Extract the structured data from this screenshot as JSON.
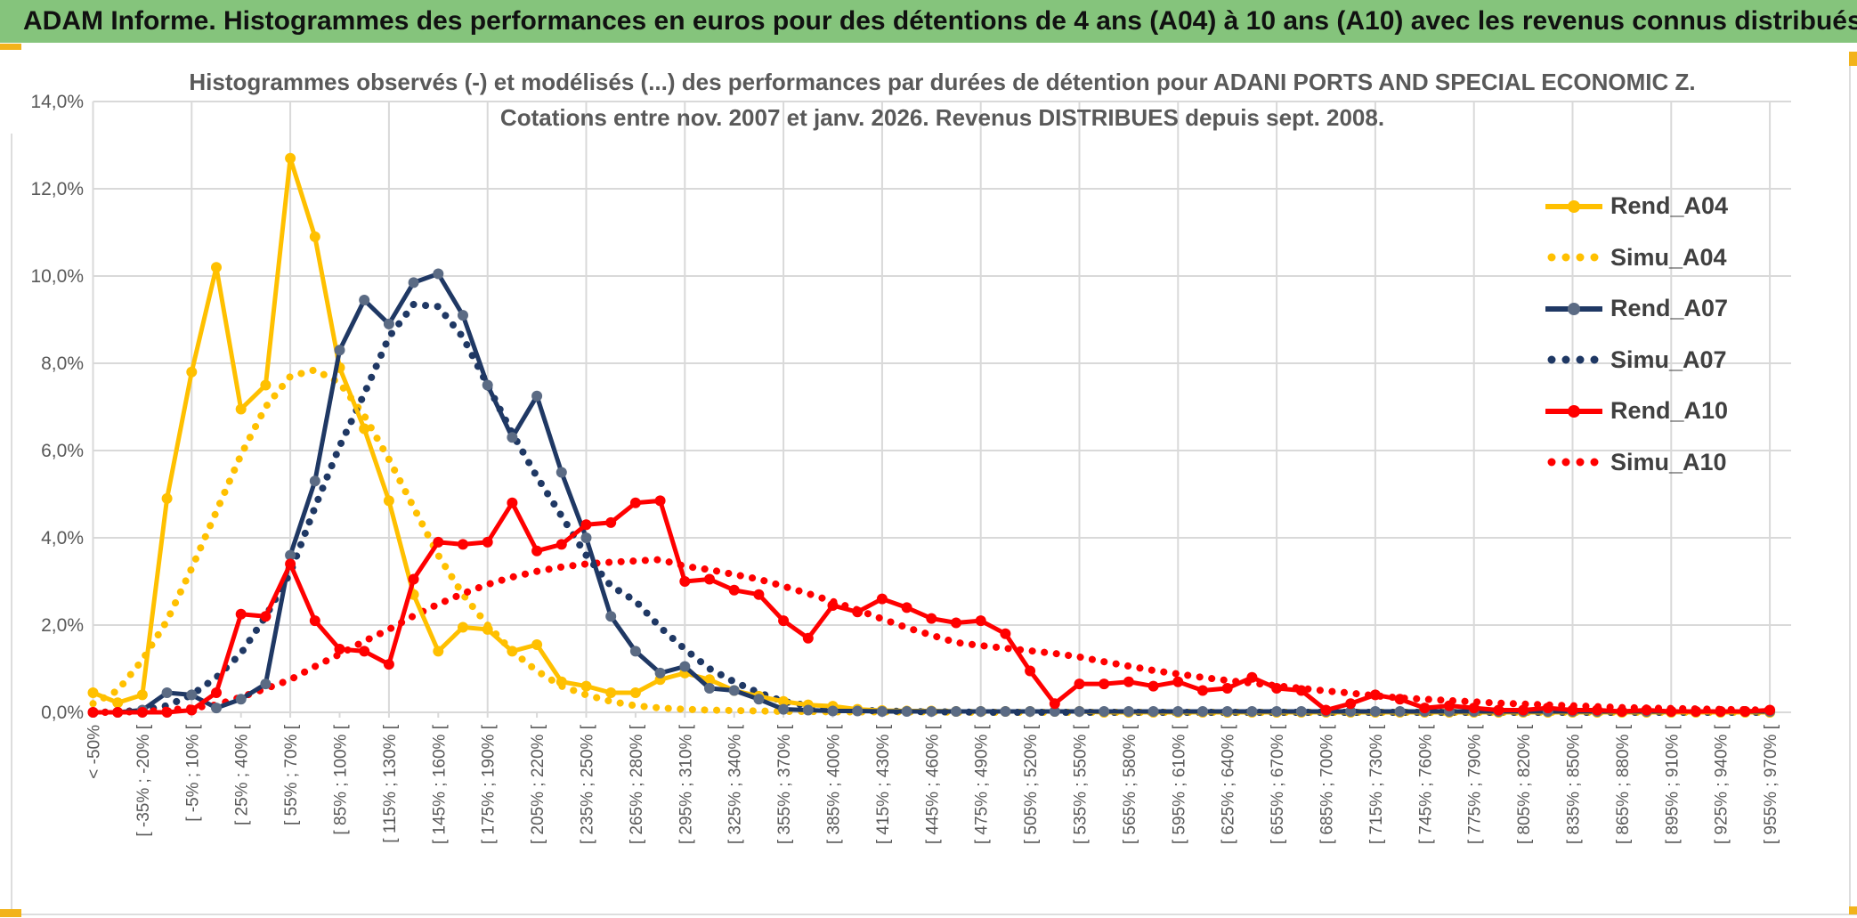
{
  "window": {
    "title": "ADAM Informe. Histogrammes des performances en euros pour des détentions de 4 ans (A04) à 10 ans (A10) avec les revenus connus distribués"
  },
  "chart": {
    "title_line1": "Histogrammes observés (-) et modélisés (...) des performances par durées de détention pour ADANI PORTS AND SPECIAL ECONOMIC Z.",
    "title_line2": "Cotations entre nov. 2007 et janv. 2026. Revenus DISTRIBUES depuis sept. 2008."
  },
  "colors": {
    "titlebar_green": "#85C47C",
    "gold_accent": "#F2B31B",
    "series_gold": "#FFC000",
    "series_navy": "#1F3864",
    "navy_marker": "#5B6B84",
    "series_red": "#FF0000",
    "grid": "#D9D9D9",
    "axis_text": "#595959",
    "legend_text": "#404040"
  },
  "chart_data": {
    "type": "line",
    "title": "Histogrammes observés (-) et modélisés (...) des performances par durées de détention pour ADANI PORTS AND SPECIAL ECONOMIC Z. Cotations entre nov. 2007 et janv. 2026. Revenus DISTRIBUES depuis sept. 2008.",
    "xlabel": "",
    "ylabel": "",
    "ylim": [
      0,
      14
    ],
    "ytick_step": 2,
    "ytick_labels": [
      "0,0%",
      "2,0%",
      "4,0%",
      "6,0%",
      "8,0%",
      "10,0%",
      "12,0%",
      "14,0%"
    ],
    "grid": true,
    "legend_position": "right",
    "categories": [
      "< -50%",
      "",
      "[ -35% ; -20% [",
      "",
      "[ -5% ; 10% [",
      "",
      "[ 25% ; 40% [",
      "",
      "[ 55% ; 70% [",
      "",
      "[ 85% ; 100% [",
      "",
      "[ 115% ; 130% [",
      "",
      "[ 145% ; 160% [",
      "",
      "[ 175% ; 190% [",
      "",
      "[ 205% ; 220% [",
      "",
      "[ 235% ; 250% [",
      "",
      "[ 265% ; 280% [",
      "",
      "[ 295% ; 310% [",
      "",
      "[ 325% ; 340% [",
      "",
      "[ 355% ; 370% [",
      "",
      "[ 385% ; 400% [",
      "",
      "[ 415% ; 430% [",
      "",
      "[ 445% ; 460% [",
      "",
      "[ 475% ; 490% [",
      "",
      "[ 505% ; 520% [",
      "",
      "[ 535% ; 550% [",
      "",
      "[ 565% ; 580% [",
      "",
      "[ 595% ; 610% [",
      "",
      "[ 625% ; 640% [",
      "",
      "[ 655% ; 670% [",
      "",
      "[ 685% ; 700% [",
      "",
      "[ 715% ; 730% [",
      "",
      "[ 745% ; 760% [",
      "",
      "[ 775% ; 790% [",
      "",
      "[ 805% ; 820% [",
      "",
      "[ 835% ; 850% [",
      "",
      "[ 865% ; 880% [",
      "",
      "[ 895% ; 910% [",
      "",
      "[ 925% ; 940% [",
      "",
      "[ 955% ; 970% ["
    ],
    "series": [
      {
        "name": "Rend_A04",
        "color": "#FFC000",
        "style": "solid",
        "marker": "#FFC000",
        "values": [
          0.45,
          0.22,
          0.4,
          4.9,
          7.8,
          10.2,
          6.95,
          7.5,
          12.7,
          10.9,
          7.9,
          6.5,
          4.85,
          2.7,
          1.4,
          1.95,
          1.9,
          1.4,
          1.55,
          0.7,
          0.6,
          0.45,
          0.45,
          0.75,
          0.9,
          0.75,
          0.5,
          0.37,
          0.25,
          0.17,
          0.14,
          0.07,
          0.04,
          0.03,
          0.03,
          0.02,
          0.02,
          0.02,
          0.02,
          0.02,
          0.02,
          0,
          0,
          0,
          0,
          0,
          0,
          0,
          0,
          0,
          0,
          0,
          0,
          0,
          0,
          0,
          0,
          0,
          0,
          0,
          0,
          0,
          0,
          0,
          0,
          0,
          0,
          0,
          0
        ]
      },
      {
        "name": "Simu_A04",
        "color": "#FFC000",
        "style": "dotted",
        "values": [
          0.2,
          0.5,
          1.2,
          2.1,
          3.3,
          4.6,
          5.9,
          7.0,
          7.7,
          7.85,
          7.55,
          6.8,
          5.8,
          4.7,
          3.6,
          2.7,
          2.0,
          1.4,
          0.95,
          0.6,
          0.4,
          0.25,
          0.15,
          0.1,
          0.07,
          0.05,
          0.04,
          0.03,
          0.02,
          0.02,
          0.01,
          0.01,
          0.01,
          0.01,
          0.01,
          0,
          0,
          0,
          0,
          0,
          0,
          0,
          0,
          0,
          0,
          0,
          0,
          0,
          0,
          0,
          0,
          0,
          0,
          0,
          0,
          0,
          0,
          0,
          0,
          0,
          0,
          0,
          0,
          0,
          0,
          0,
          0,
          0,
          0
        ]
      },
      {
        "name": "Rend_A07",
        "color": "#1F3864",
        "style": "solid",
        "marker": "#5B6B84",
        "values": [
          0,
          0,
          0.05,
          0.45,
          0.4,
          0.1,
          0.3,
          0.65,
          3.6,
          5.3,
          8.3,
          9.45,
          8.9,
          9.85,
          10.05,
          9.1,
          7.5,
          6.3,
          7.25,
          5.5,
          4.0,
          2.2,
          1.4,
          0.9,
          1.05,
          0.55,
          0.5,
          0.3,
          0.07,
          0.05,
          0.03,
          0.03,
          0.02,
          0.02,
          0.02,
          0.02,
          0.02,
          0.02,
          0.02,
          0.02,
          0.02,
          0.02,
          0.02,
          0.02,
          0.02,
          0.02,
          0.02,
          0.02,
          0.02,
          0.02,
          0.02,
          0.02,
          0.02,
          0.02,
          0.02,
          0.02,
          0.02,
          0.02,
          0.02,
          0.02,
          0.02,
          0.02,
          0.02,
          0.02,
          0.02,
          0.02,
          0.02,
          0.02,
          0.02
        ]
      },
      {
        "name": "Simu_A07",
        "color": "#1F3864",
        "style": "dotted",
        "values": [
          0,
          0.01,
          0.05,
          0.15,
          0.4,
          0.8,
          1.35,
          2.2,
          3.2,
          4.7,
          6.1,
          7.3,
          8.6,
          9.35,
          9.3,
          8.6,
          7.5,
          6.4,
          5.4,
          4.5,
          3.6,
          2.9,
          2.55,
          1.95,
          1.45,
          1.0,
          0.7,
          0.45,
          0.25,
          0.15,
          0.08,
          0.05,
          0.03,
          0.02,
          0.01,
          0.01,
          0,
          0,
          0,
          0,
          0,
          0,
          0,
          0,
          0,
          0,
          0,
          0,
          0,
          0,
          0,
          0,
          0,
          0,
          0,
          0,
          0,
          0,
          0,
          0,
          0,
          0,
          0,
          0,
          0,
          0,
          0,
          0,
          0
        ]
      },
      {
        "name": "Rend_A10",
        "color": "#FF0000",
        "style": "solid",
        "marker": "#FF0000",
        "values": [
          0,
          0,
          0,
          0,
          0.05,
          0.45,
          2.25,
          2.2,
          3.4,
          2.1,
          1.45,
          1.4,
          1.1,
          3.05,
          3.9,
          3.85,
          3.9,
          4.8,
          3.7,
          3.85,
          4.3,
          4.35,
          4.8,
          4.85,
          3.0,
          3.05,
          2.8,
          2.7,
          2.1,
          1.7,
          2.45,
          2.3,
          2.6,
          2.4,
          2.15,
          2.05,
          2.1,
          1.8,
          0.95,
          0.2,
          0.65,
          0.65,
          0.7,
          0.6,
          0.7,
          0.5,
          0.55,
          0.8,
          0.55,
          0.5,
          0.05,
          0.2,
          0.4,
          0.3,
          0.1,
          0.15,
          0.1,
          0.05,
          0.05,
          0.1,
          0.05,
          0.05,
          0.02,
          0.05,
          0.02,
          0.02,
          0.02,
          0.02,
          0.05
        ]
      },
      {
        "name": "Simu_A10",
        "color": "#FF0000",
        "style": "dotted",
        "values": [
          0,
          0,
          0.02,
          0.05,
          0.1,
          0.17,
          0.35,
          0.54,
          0.75,
          1.05,
          1.33,
          1.63,
          1.9,
          2.21,
          2.48,
          2.72,
          2.93,
          3.1,
          3.23,
          3.33,
          3.4,
          3.44,
          3.47,
          3.5,
          3.35,
          3.27,
          3.16,
          3.05,
          2.89,
          2.72,
          2.54,
          2.35,
          2.14,
          1.94,
          1.77,
          1.6,
          1.53,
          1.47,
          1.41,
          1.35,
          1.27,
          1.16,
          1.06,
          0.96,
          0.88,
          0.8,
          0.73,
          0.67,
          0.61,
          0.55,
          0.49,
          0.44,
          0.38,
          0.33,
          0.3,
          0.27,
          0.24,
          0.21,
          0.19,
          0.17,
          0.15,
          0.13,
          0.11,
          0.1,
          0.09,
          0.08,
          0.07,
          0.06,
          0.05
        ]
      }
    ]
  }
}
